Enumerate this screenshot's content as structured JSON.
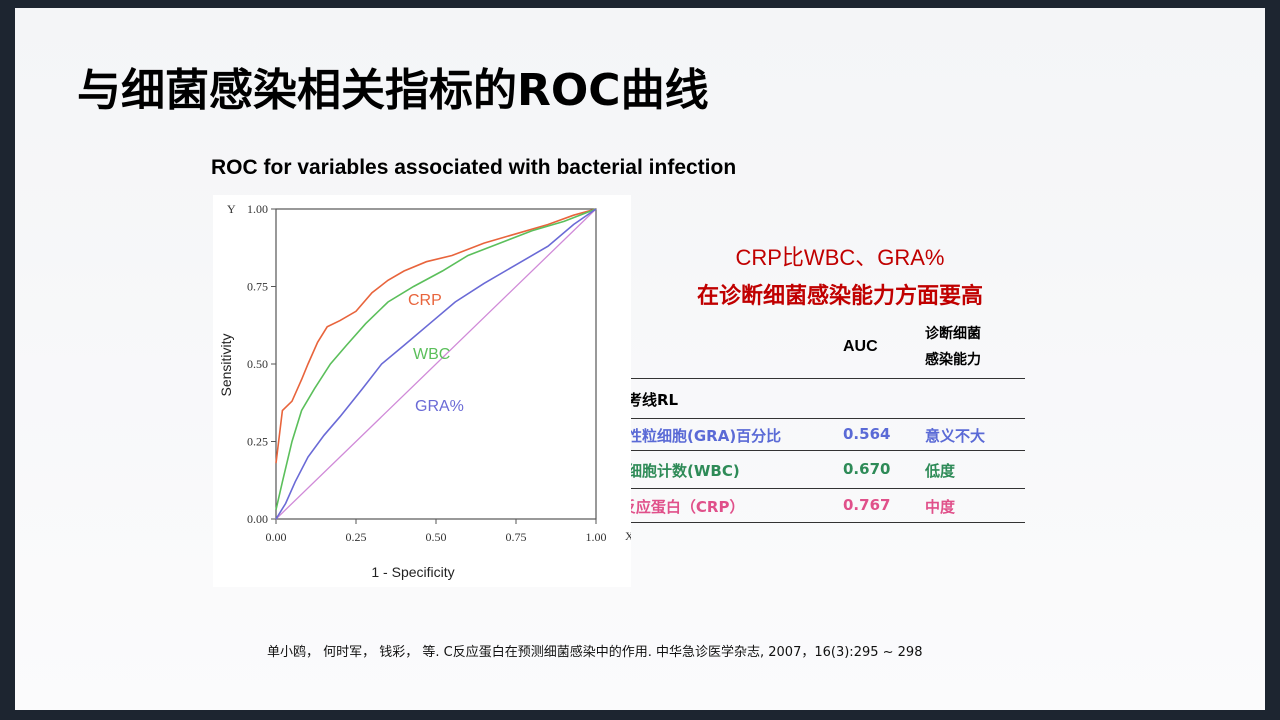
{
  "title": "与细菌感染相关指标的ROC曲线",
  "chart_data": {
    "type": "line",
    "title": "ROC for variables associated with bacterial infection",
    "xlabel": "1 - Specificity",
    "ylabel": "Sensitivity",
    "x_axis_letter": "X",
    "y_axis_letter": "Y",
    "xlim": [
      0,
      1
    ],
    "ylim": [
      0,
      1
    ],
    "xticks": [
      {
        "value": 0,
        "label": "0.00"
      },
      {
        "value": 0.25,
        "label": "0.25"
      },
      {
        "value": 0.5,
        "label": "0.50"
      },
      {
        "value": 0.75,
        "label": "0.75"
      },
      {
        "value": 1,
        "label": "1.00"
      }
    ],
    "yticks": [
      {
        "value": 0,
        "label": "0.00"
      },
      {
        "value": 0.25,
        "label": "0.25"
      },
      {
        "value": 0.5,
        "label": "0.50"
      },
      {
        "value": 0.75,
        "label": "0.75"
      },
      {
        "value": 1,
        "label": "1.00"
      }
    ],
    "series": [
      {
        "name": "CRP",
        "color": "#e8643c",
        "x": [
          0,
          0.02,
          0.05,
          0.08,
          0.1,
          0.13,
          0.16,
          0.2,
          0.25,
          0.3,
          0.35,
          0.4,
          0.47,
          0.55,
          0.65,
          0.75,
          0.85,
          0.93,
          1
        ],
        "values": [
          0.18,
          0.35,
          0.38,
          0.45,
          0.5,
          0.57,
          0.62,
          0.64,
          0.67,
          0.73,
          0.77,
          0.8,
          0.83,
          0.85,
          0.89,
          0.92,
          0.95,
          0.98,
          1
        ]
      },
      {
        "name": "WBC",
        "color": "#5bbf5b",
        "x": [
          0,
          0.02,
          0.05,
          0.08,
          0.12,
          0.17,
          0.22,
          0.28,
          0.35,
          0.43,
          0.52,
          0.6,
          0.7,
          0.8,
          0.9,
          1
        ],
        "values": [
          0.03,
          0.12,
          0.25,
          0.35,
          0.42,
          0.5,
          0.56,
          0.63,
          0.7,
          0.75,
          0.8,
          0.85,
          0.89,
          0.93,
          0.96,
          1
        ]
      },
      {
        "name": "GRA%",
        "color": "#6a6ad6",
        "x": [
          0,
          0.03,
          0.06,
          0.1,
          0.15,
          0.2,
          0.27,
          0.33,
          0.4,
          0.48,
          0.56,
          0.65,
          0.75,
          0.85,
          0.93,
          1
        ],
        "values": [
          0,
          0.05,
          0.12,
          0.2,
          0.27,
          0.33,
          0.42,
          0.5,
          0.56,
          0.63,
          0.7,
          0.76,
          0.82,
          0.88,
          0.95,
          1
        ]
      }
    ]
  },
  "annotation": [
    "CRP比WBC、GRA%",
    "在诊断细菌感染能力方面要高"
  ],
  "table": {
    "header": {
      "auc": "AUC",
      "ability": [
        "诊断细菌",
        "感染能力"
      ]
    },
    "rows": [
      {
        "label": "参考线RL"
      },
      {
        "label": "中性粒细胞(GRA)百分比",
        "auc": "0.564",
        "ability": "意义不大"
      },
      {
        "label": "白细胞计数(WBC)",
        "auc": "0.670",
        "ability": "低度"
      },
      {
        "label": "c反应蛋白（CRP）",
        "auc": "0.767",
        "ability": "中度"
      }
    ]
  },
  "citation": "单小鸥， 何时军， 钱彩， 等. C反应蛋白在预测细菌感染中的作用. 中华急诊医学杂志, 2007，16(3):295 ~ 298"
}
